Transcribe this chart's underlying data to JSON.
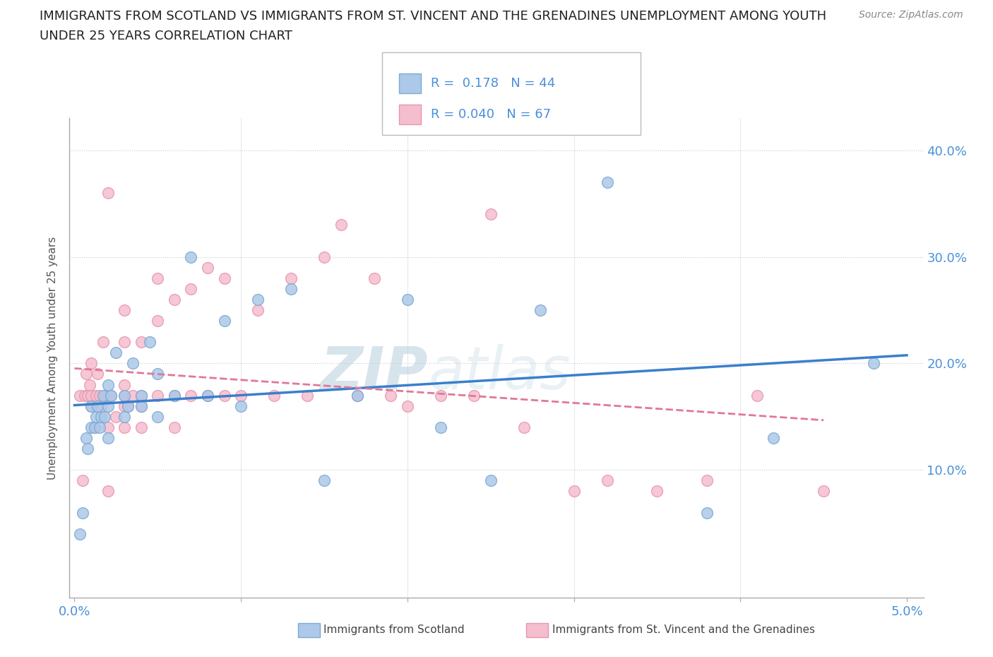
{
  "title_line1": "IMMIGRANTS FROM SCOTLAND VS IMMIGRANTS FROM ST. VINCENT AND THE GRENADINES UNEMPLOYMENT AMONG YOUTH",
  "title_line2": "UNDER 25 YEARS CORRELATION CHART",
  "source": "Source: ZipAtlas.com",
  "ylabel": "Unemployment Among Youth under 25 years",
  "xlim": [
    -0.0003,
    0.051
  ],
  "ylim": [
    -0.02,
    0.43
  ],
  "xticks": [
    0.0,
    0.01,
    0.02,
    0.03,
    0.04,
    0.05
  ],
  "ytick_positions": [
    0.1,
    0.2,
    0.3,
    0.4
  ],
  "ytick_labels": [
    "10.0%",
    "20.0%",
    "30.0%",
    "40.0%"
  ],
  "scotland_color": "#adc8e8",
  "scotland_edge": "#7aaad4",
  "stvincent_color": "#f5bece",
  "stvincent_edge": "#e896ae",
  "scotland_line_color": "#3a7fcc",
  "stvincent_line_color": "#e07898",
  "tick_label_color": "#4a90d9",
  "scotland_R": 0.178,
  "scotland_N": 44,
  "stvincent_R": 0.04,
  "stvincent_N": 67,
  "watermark_zip": "ZIP",
  "watermark_atlas": "atlas",
  "scotland_x": [
    0.0003,
    0.0005,
    0.0007,
    0.0008,
    0.001,
    0.001,
    0.0012,
    0.0013,
    0.0014,
    0.0015,
    0.0016,
    0.0017,
    0.0018,
    0.002,
    0.002,
    0.002,
    0.0022,
    0.0025,
    0.003,
    0.003,
    0.0032,
    0.0035,
    0.004,
    0.004,
    0.0045,
    0.005,
    0.005,
    0.006,
    0.007,
    0.008,
    0.009,
    0.01,
    0.011,
    0.013,
    0.015,
    0.017,
    0.02,
    0.022,
    0.025,
    0.028,
    0.032,
    0.038,
    0.042,
    0.048
  ],
  "scotland_y": [
    0.04,
    0.06,
    0.13,
    0.12,
    0.14,
    0.16,
    0.14,
    0.15,
    0.16,
    0.14,
    0.15,
    0.17,
    0.15,
    0.13,
    0.16,
    0.18,
    0.17,
    0.21,
    0.15,
    0.17,
    0.16,
    0.2,
    0.16,
    0.17,
    0.22,
    0.19,
    0.15,
    0.17,
    0.3,
    0.17,
    0.24,
    0.16,
    0.26,
    0.27,
    0.09,
    0.17,
    0.26,
    0.14,
    0.09,
    0.25,
    0.37,
    0.06,
    0.13,
    0.2
  ],
  "stvincent_x": [
    0.0003,
    0.0005,
    0.0006,
    0.0007,
    0.0008,
    0.0009,
    0.001,
    0.001,
    0.001,
    0.0012,
    0.0013,
    0.0014,
    0.0015,
    0.0016,
    0.0017,
    0.0018,
    0.002,
    0.002,
    0.002,
    0.002,
    0.0022,
    0.0025,
    0.003,
    0.003,
    0.003,
    0.003,
    0.003,
    0.003,
    0.0032,
    0.0035,
    0.004,
    0.004,
    0.004,
    0.004,
    0.005,
    0.005,
    0.005,
    0.006,
    0.006,
    0.006,
    0.007,
    0.007,
    0.008,
    0.008,
    0.009,
    0.009,
    0.01,
    0.011,
    0.012,
    0.013,
    0.014,
    0.015,
    0.016,
    0.017,
    0.018,
    0.019,
    0.02,
    0.022,
    0.024,
    0.025,
    0.027,
    0.03,
    0.032,
    0.035,
    0.038,
    0.041,
    0.045
  ],
  "stvincent_y": [
    0.17,
    0.09,
    0.17,
    0.19,
    0.17,
    0.18,
    0.16,
    0.17,
    0.2,
    0.14,
    0.17,
    0.19,
    0.17,
    0.16,
    0.22,
    0.17,
    0.08,
    0.14,
    0.17,
    0.36,
    0.17,
    0.15,
    0.14,
    0.16,
    0.17,
    0.18,
    0.22,
    0.25,
    0.16,
    0.17,
    0.14,
    0.16,
    0.17,
    0.22,
    0.24,
    0.17,
    0.28,
    0.14,
    0.17,
    0.26,
    0.17,
    0.27,
    0.17,
    0.29,
    0.17,
    0.28,
    0.17,
    0.25,
    0.17,
    0.28,
    0.17,
    0.3,
    0.33,
    0.17,
    0.28,
    0.17,
    0.16,
    0.17,
    0.17,
    0.34,
    0.14,
    0.08,
    0.09,
    0.08,
    0.09,
    0.17,
    0.08
  ]
}
